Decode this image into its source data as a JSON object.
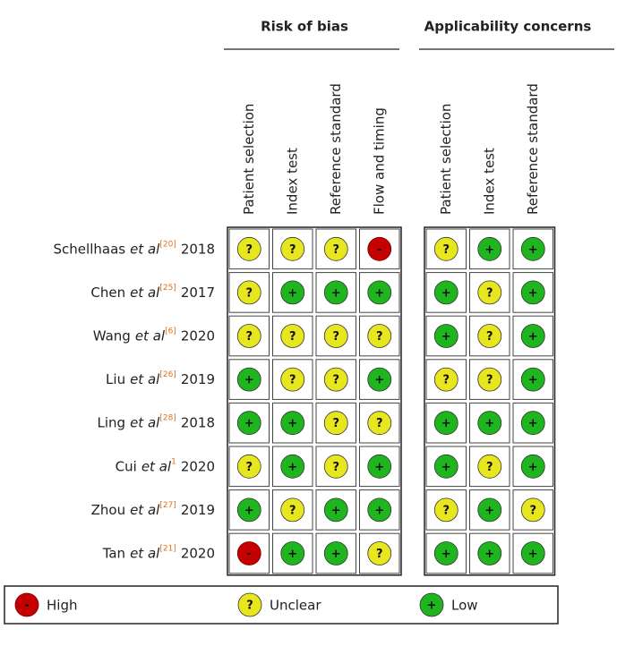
{
  "headers": {
    "risk": "Risk of bias",
    "applicability": "Applicability concerns"
  },
  "columns": {
    "risk": [
      "Patient selection",
      "Index test",
      "Reference standard",
      "Flow and timing"
    ],
    "applicability": [
      "Patient selection",
      "Index test",
      "Reference standard"
    ]
  },
  "rows": [
    {
      "author": "Schellhaas",
      "etal": "et al",
      "ref": "[20]",
      "year": "2018",
      "risk": [
        "?",
        "?",
        "?",
        "-"
      ],
      "applicability": [
        "?",
        "+",
        "+"
      ]
    },
    {
      "author": "Chen",
      "etal": "et al",
      "ref": "[25]",
      "year": "2017",
      "risk": [
        "?",
        "+",
        "+",
        "+"
      ],
      "applicability": [
        "+",
        "?",
        "+"
      ]
    },
    {
      "author": "Wang",
      "etal": "et al",
      "ref": "[6]",
      "year": "2020",
      "risk": [
        "?",
        "?",
        "?",
        "?"
      ],
      "applicability": [
        "+",
        "?",
        "+"
      ]
    },
    {
      "author": "Liu",
      "etal": "et al",
      "ref": "[26]",
      "year": "2019",
      "risk": [
        "+",
        "?",
        "?",
        "+"
      ],
      "applicability": [
        "?",
        "?",
        "+"
      ]
    },
    {
      "author": "Ling",
      "etal": "et al",
      "ref": "[28]",
      "year": "2018",
      "risk": [
        "+",
        "+",
        "?",
        "?"
      ],
      "applicability": [
        "+",
        "+",
        "+"
      ]
    },
    {
      "author": "Cui",
      "etal": "et al",
      "ref": "1",
      "year": "2020",
      "risk": [
        "?",
        "+",
        "?",
        "+"
      ],
      "applicability": [
        "+",
        "?",
        "+"
      ]
    },
    {
      "author": "Zhou",
      "etal": "et al",
      "ref": "[27]",
      "year": "2019",
      "risk": [
        "+",
        "?",
        "+",
        "+"
      ],
      "applicability": [
        "?",
        "+",
        "?"
      ]
    },
    {
      "author": "Tan",
      "etal": "et al",
      "ref": "[21]",
      "year": "2020",
      "risk": [
        "-",
        "+",
        "+",
        "?"
      ],
      "applicability": [
        "+",
        "+",
        "+"
      ]
    }
  ],
  "legend": [
    {
      "symbol": "-",
      "label": "High",
      "color": "#c40000"
    },
    {
      "symbol": "?",
      "label": "Unclear",
      "color": "#e8e61e"
    },
    {
      "symbol": "+",
      "label": "Low",
      "color": "#1fb51f"
    }
  ]
}
